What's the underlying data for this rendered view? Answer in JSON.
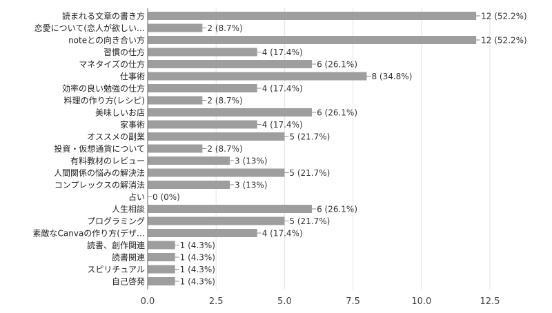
{
  "chart_data": {
    "type": "bar",
    "orientation": "horizontal",
    "categories": [
      "読まれる文章の書き方",
      "恋愛について(恋人が欲しい…",
      "noteとの向き合い方",
      "習慣の仕方",
      "マネタイズの仕方",
      "仕事術",
      "効率の良い勉強の仕方",
      "料理の作り方(レシピ)",
      "美味しいお店",
      "家事術",
      "オススメの副業",
      "投資・仮想通貨について",
      "有料教材のレビュー",
      "人間関係の悩みの解決法",
      "コンプレックスの解消法",
      "占い",
      "人生相談",
      "プログラミング",
      "素敵なCanvaの作り方(デザ…",
      "読書、創作関連",
      "読書関連",
      "スピリチュアル",
      "自己啓発"
    ],
    "values": [
      12,
      2,
      12,
      4,
      6,
      8,
      4,
      2,
      6,
      4,
      5,
      2,
      3,
      5,
      3,
      0,
      6,
      5,
      4,
      1,
      1,
      1,
      1
    ],
    "data_labels": [
      "12 (52.2%)",
      "2 (8.7%)",
      "12 (52.2%)",
      "4 (17.4%)",
      "6 (26.1%)",
      "8 (34.8%)",
      "4 (17.4%)",
      "2 (8.7%)",
      "6 (26.1%)",
      "4 (17.4%)",
      "5 (21.7%)",
      "2 (8.7%)",
      "3 (13%)",
      "5 (21.7%)",
      "3 (13%)",
      "0 (0%)",
      "6 (26.1%)",
      "5 (21.7%)",
      "4 (17.4%)",
      "1 (4.3%)",
      "1 (4.3%)",
      "1 (4.3%)",
      "1 (4.3%)"
    ],
    "x_ticks": [
      "0.0",
      "2.5",
      "5.0",
      "7.5",
      "10.0",
      "12.5"
    ],
    "xlim": [
      0,
      12.5
    ],
    "grid": true,
    "colors": {
      "bar": "#9e9e9e",
      "grid": "#e3e3e3",
      "axis": "#666666",
      "category_text": "#222222",
      "label_text": "#333333"
    }
  }
}
